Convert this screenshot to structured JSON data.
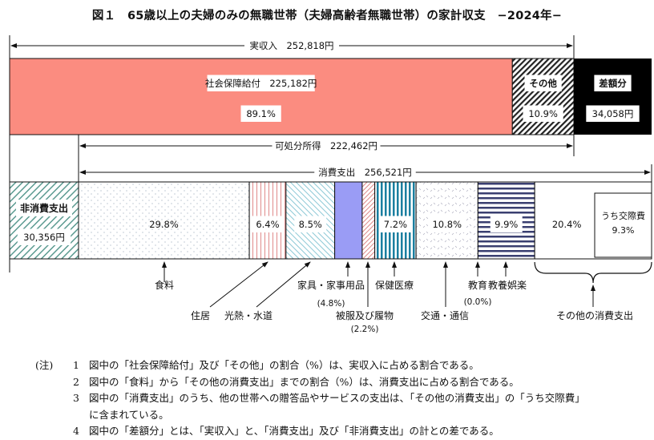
{
  "title": "図１　65歳以上の夫婦のみの無職世帯（夫婦高齢者無職世帯）の家計収支　−2024年−",
  "chart_data": {
    "type": "bar",
    "stacked": true,
    "orientation": "horizontal",
    "title": "図１　65歳以上の夫婦のみの無職世帯（夫婦高齢者無職世帯）の家計収支　−2024年−",
    "income": {
      "label": "実収入　252,818円",
      "value": 252818,
      "segments": [
        {
          "name": "社会保障給付",
          "label": "社会保障給付　225,182円",
          "value": 225182,
          "pct": 89.1,
          "pct_label": "89.1%",
          "color": "#fb8c80"
        },
        {
          "name": "その他",
          "label": "その他",
          "pct": 10.9,
          "pct_label": "10.9%",
          "color": "#ffffff"
        }
      ],
      "deficit": {
        "label": "差額分",
        "value": 34058,
        "value_label": "34,058円",
        "color": "#000000"
      }
    },
    "disposable_income": {
      "label": "可処分所得　222,462円",
      "value": 222462
    },
    "consumption": {
      "label": "消費支出　256,521円",
      "value": 256521,
      "non_consumption": {
        "label": "非消費支出",
        "value": 30356,
        "value_label": "30,356円"
      },
      "segments": [
        {
          "name": "食料",
          "pct": 29.8,
          "pct_label": "29.8%"
        },
        {
          "name": "住居",
          "pct": 6.4,
          "pct_label": "6.4%"
        },
        {
          "name": "光熱・水道",
          "pct": 8.5,
          "pct_label": "8.5%"
        },
        {
          "name": "家具・家事用品",
          "pct": 4.8,
          "pct_label": "(4.8%)"
        },
        {
          "name": "被服及び履物",
          "pct": 2.2,
          "pct_label": "(2.2%)"
        },
        {
          "name": "保健医療",
          "pct": 7.2,
          "pct_label": "7.2%"
        },
        {
          "name": "交通・通信",
          "pct": 10.8,
          "pct_label": "10.8%"
        },
        {
          "name": "教育",
          "pct": 0.0,
          "pct_label": "(0.0%)"
        },
        {
          "name": "教養娯楽",
          "pct": 9.9,
          "pct_label": "9.9%"
        },
        {
          "name": "その他の消費支出",
          "pct": 20.4,
          "pct_label": "20.4%"
        }
      ],
      "sub": {
        "label": "うち交際費",
        "pct": 9.3,
        "pct_label": "9.3%"
      }
    }
  },
  "notes": {
    "header": "(注)",
    "items": [
      {
        "num": "1",
        "text": "図中の「社会保障給付」及び「その他」の割合（%）は、実収入に占める割合である。"
      },
      {
        "num": "2",
        "text": "図中の「食料」から「その他の消費支出」までの割合（%）は、消費支出に占める割合である。"
      },
      {
        "num": "3",
        "text": "図中の「消費支出」のうち、他の世帯への贈答品やサービスの支出は、「その他の消費支出」の「うち交際費」",
        "cont": "に含まれている。"
      },
      {
        "num": "4",
        "text": "図中の「差額分」とは、「実収入」と、「消費支出」及び「非消費支出」の計との差である。"
      }
    ]
  }
}
